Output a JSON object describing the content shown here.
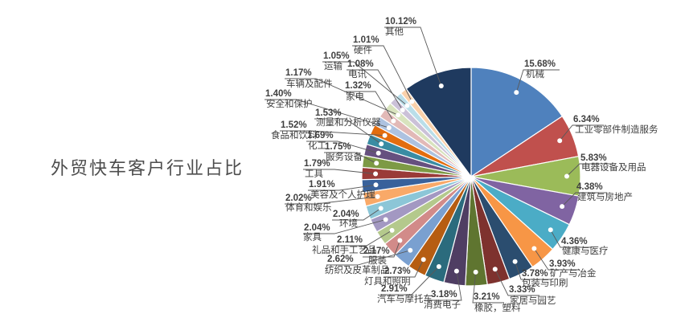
{
  "chart_data": {
    "type": "pie",
    "title": "外贸快车客户行业占比",
    "unit": "%",
    "legend": "none",
    "label_style": "percent and category name on leader lines with white dot markers",
    "start_angle_deg": 0,
    "direction": "clockwise",
    "slices": [
      {
        "label": "机械",
        "value": 15.68,
        "color": "#4F81BD"
      },
      {
        "label": "工业零部件制造服务",
        "value": 6.34,
        "color": "#C0504D"
      },
      {
        "label": "电器设备及用品",
        "value": 5.83,
        "color": "#9BBB59"
      },
      {
        "label": "建筑与房地产",
        "value": 4.38,
        "color": "#8064A2"
      },
      {
        "label": "健康与医疗",
        "value": 4.36,
        "color": "#4BACC6"
      },
      {
        "label": "矿产与冶金",
        "value": 3.93,
        "color": "#F79646"
      },
      {
        "label": "包装与印刷",
        "value": 3.78,
        "color": "#2B4D6F"
      },
      {
        "label": "家居与园艺",
        "value": 3.33,
        "color": "#7E322E"
      },
      {
        "label": "橡胶，塑料",
        "value": 3.21,
        "color": "#5F7530"
      },
      {
        "label": "消费电子",
        "value": 3.18,
        "color": "#4F3E63"
      },
      {
        "label": "汽车与摩托车",
        "value": 2.91,
        "color": "#2B6B7D"
      },
      {
        "label": "灯具和照明",
        "value": 2.73,
        "color": "#B65D12"
      },
      {
        "label": "纺织及皮革制品",
        "value": 2.62,
        "color": "#7AA0D0"
      },
      {
        "label": "服装",
        "value": 2.17,
        "color": "#D28B89"
      },
      {
        "label": "礼品和手工艺品",
        "value": 2.11,
        "color": "#B4C98C"
      },
      {
        "label": "家具",
        "value": 2.04,
        "color": "#A398C2"
      },
      {
        "label": "环境",
        "value": 2.04,
        "color": "#8CC6D7"
      },
      {
        "label": "体育和娱乐",
        "value": 2.02,
        "color": "#F9A968"
      },
      {
        "label": "美容及个人护理",
        "value": 1.91,
        "color": "#38619B"
      },
      {
        "label": "工具",
        "value": 1.79,
        "color": "#9A3B38"
      },
      {
        "label": "服务设备",
        "value": 1.75,
        "color": "#7D9A45"
      },
      {
        "label": "化工",
        "value": 1.69,
        "color": "#66507F"
      },
      {
        "label": "测量和分析仪器",
        "value": 1.53,
        "color": "#3A8CA3"
      },
      {
        "label": "食品和饮料",
        "value": 1.52,
        "color": "#E36D0E"
      },
      {
        "label": "安全和保护",
        "value": 1.4,
        "color": "#ADC2E0"
      },
      {
        "label": "家电",
        "value": 1.32,
        "color": "#E2B9B7"
      },
      {
        "label": "车辆及配件",
        "value": 1.17,
        "color": "#D8E3BE"
      },
      {
        "label": "电讯",
        "value": 1.08,
        "color": "#CBC1D8"
      },
      {
        "label": "运输",
        "value": 1.05,
        "color": "#BADEE9"
      },
      {
        "label": "硬件",
        "value": 1.01,
        "color": "#FAD1AB"
      },
      {
        "label": "其他",
        "value": 10.12,
        "color": "#1F3A5F"
      }
    ],
    "colors_note": {
      "line_color": "#595959",
      "dot_color": "#FFFFFF",
      "label_text_color": "#3F3F3F",
      "title_color": "#4D4D4D",
      "background": "#FFFFFF"
    }
  }
}
